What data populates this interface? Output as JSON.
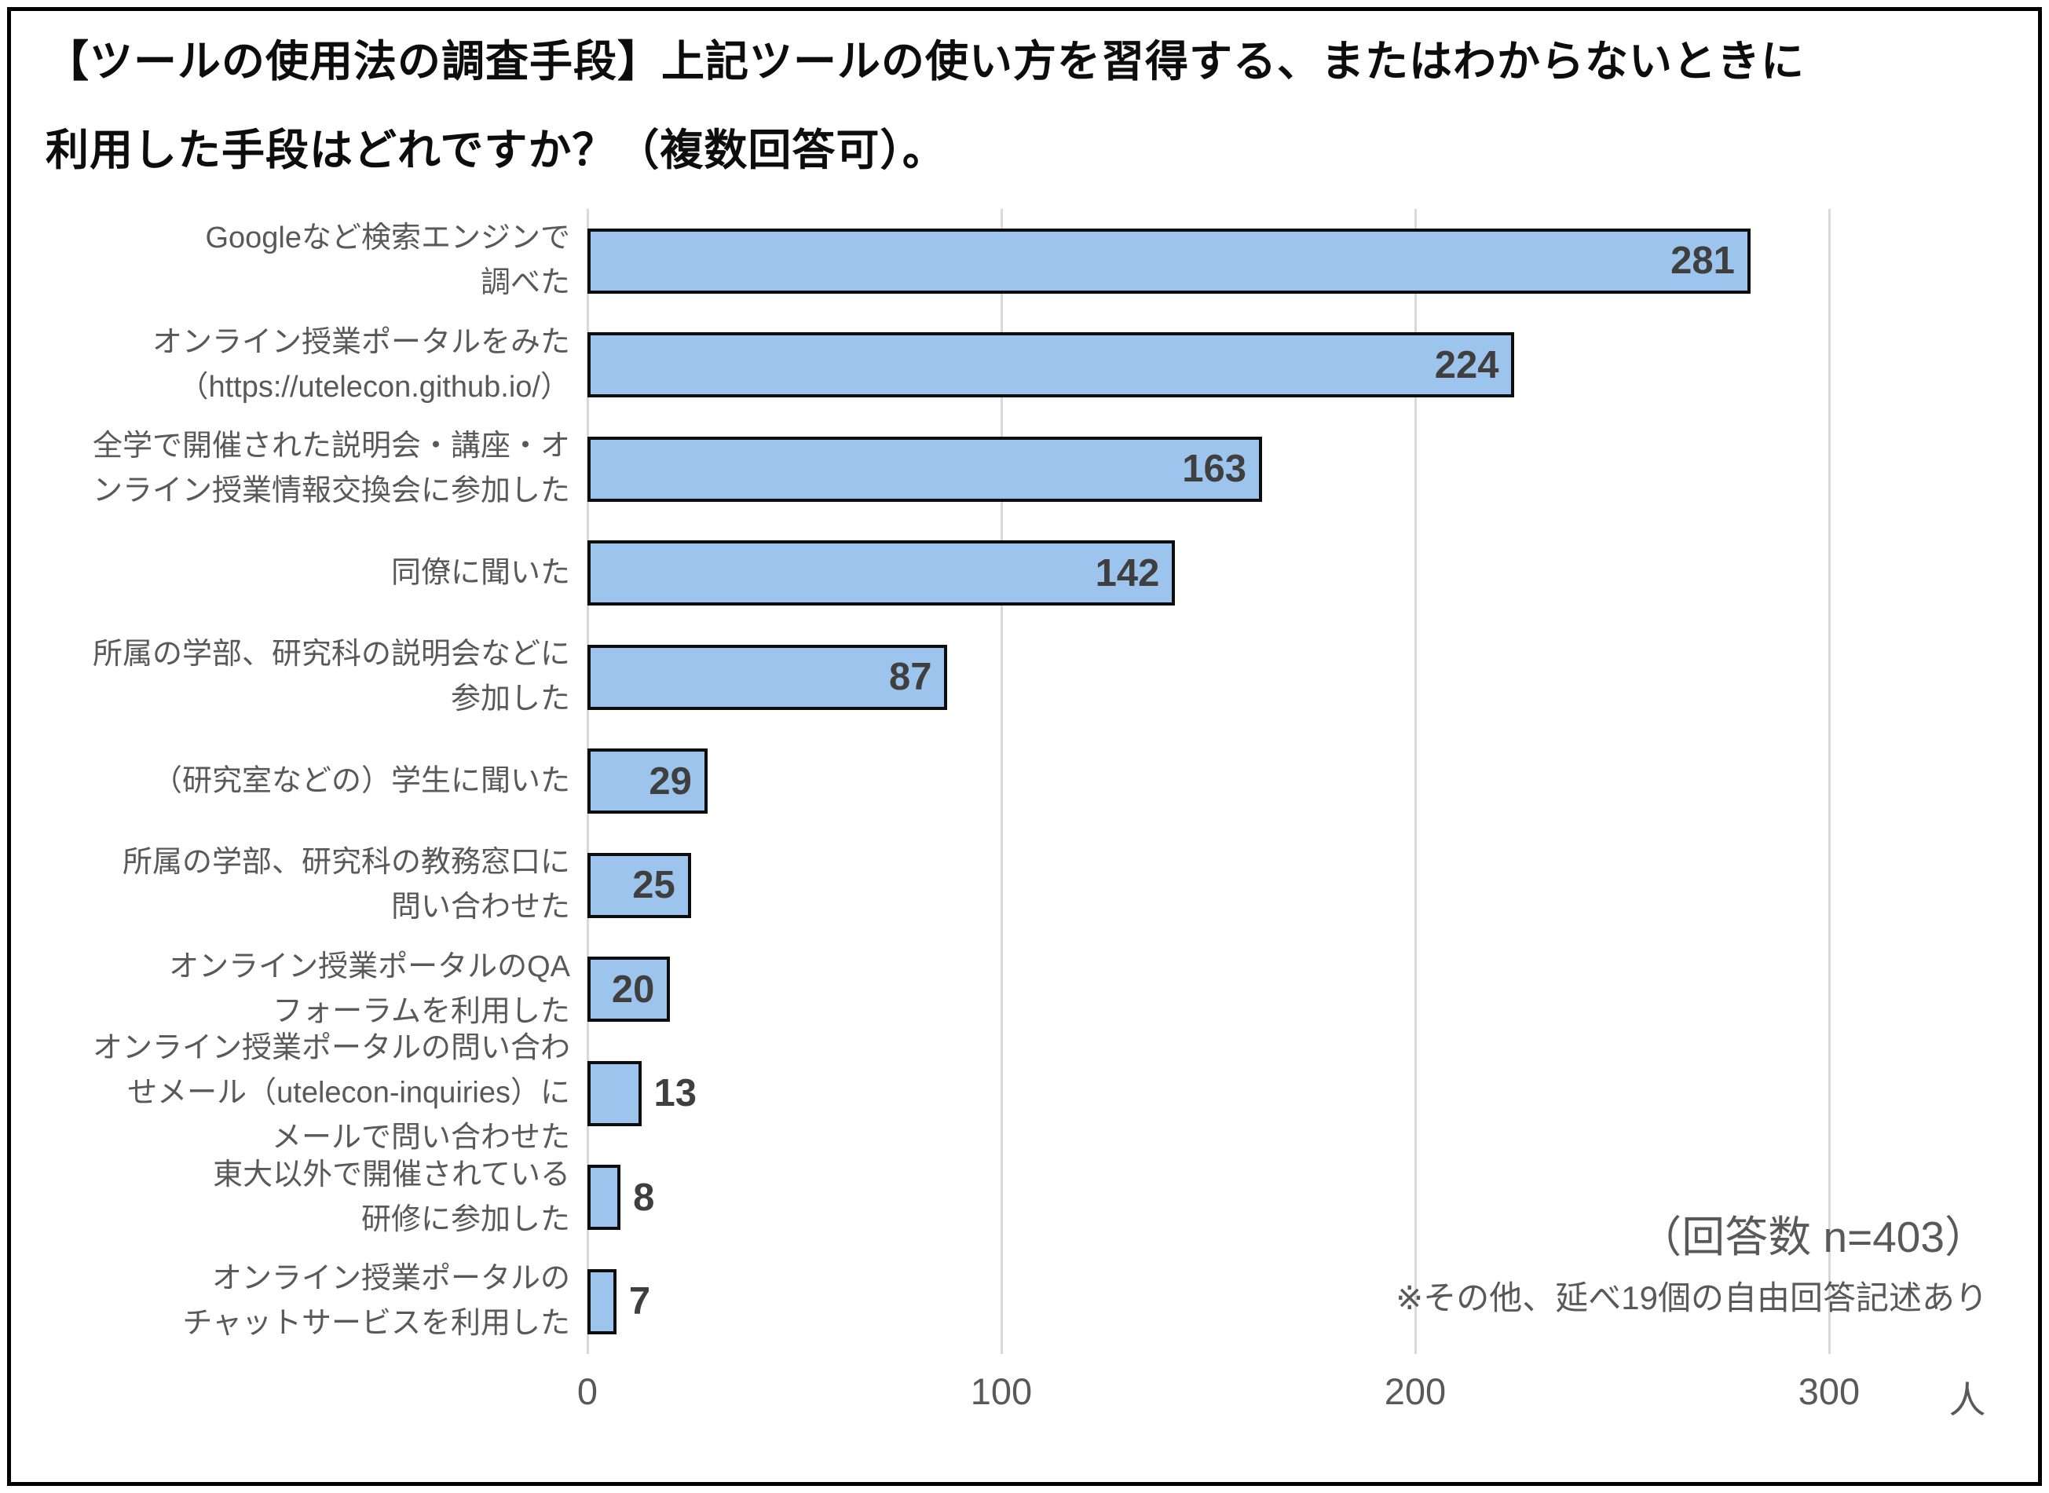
{
  "title": {
    "line1": "【ツールの使用法の調査手段】上記ツールの使い方を習得する、またはわからないときに",
    "line2": "利用した手段はどれですか？（複数回答可）。"
  },
  "note": {
    "line1": "（回答数 n=403）",
    "line2": "※その他、延べ19個の自由回答記述あり"
  },
  "x_axis": {
    "tick_labels": [
      "0",
      "100",
      "200",
      "300"
    ],
    "unit": "人"
  },
  "chart_data": {
    "type": "bar",
    "orientation": "horizontal",
    "title": "【ツールの使用法の調査手段】上記ツールの使い方を習得する、またはわからないときに利用した手段はどれですか？（複数回答可）。",
    "categories": [
      "Googleなど検索エンジンで\n調べた",
      "オンライン授業ポータルをみた\n（https://utelecon.github.io/）",
      "全学で開催された説明会・講座・オ\nンライン授業情報交換会に参加した",
      "同僚に聞いた",
      "所属の学部、研究科の説明会などに\n参加した",
      "（研究室などの）学生に聞いた",
      "所属の学部、研究科の教務窓口に\n問い合わせた",
      "オンライン授業ポータルのQA\nフォーラムを利用した",
      "オンライン授業ポータルの問い合わ\nせメール（utelecon-inquiries）に\nメールで問い合わせた",
      "東大以外で開催されている\n研修に参加した",
      "オンライン授業ポータルの\nチャットサービスを利用した"
    ],
    "values": [
      281,
      224,
      163,
      142,
      87,
      29,
      25,
      20,
      13,
      8,
      7
    ],
    "x_ticks": [
      0,
      100,
      200,
      300
    ],
    "xlim": [
      0,
      313
    ],
    "xlabel": "人",
    "ylabel": "",
    "grid": "vertical",
    "legend": "none",
    "bar_color": "#9DC4EC",
    "bar_border_color": "#0D0D0D",
    "value_label_color": "#3F3F3F",
    "annotations": [
      "（回答数 n=403）",
      "※その他、延べ19個の自由回答記述あり"
    ]
  }
}
